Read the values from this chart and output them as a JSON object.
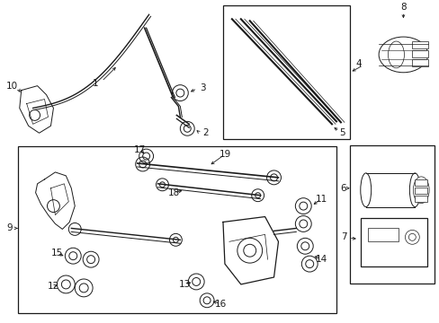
{
  "bg_color": "#ffffff",
  "line_color": "#1a1a1a",
  "fig_width": 4.89,
  "fig_height": 3.6,
  "dpi": 100,
  "title_fontsize": 7,
  "label_fontsize": 7.5
}
